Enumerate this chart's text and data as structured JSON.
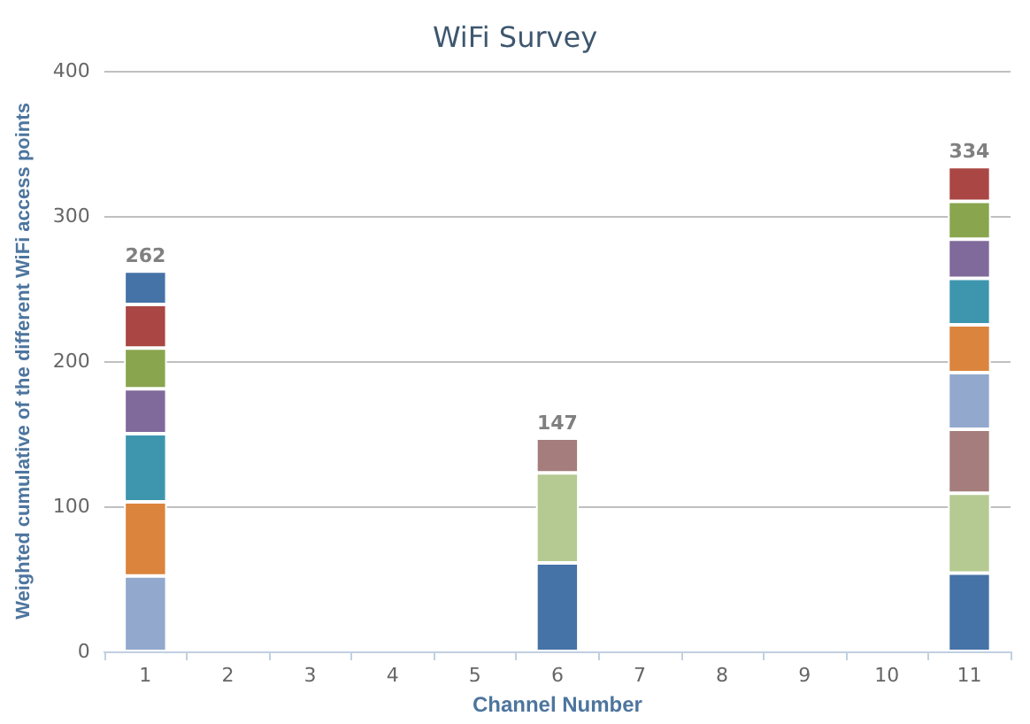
{
  "chart_data": {
    "type": "bar",
    "title": "WiFi Survey",
    "xlabel": "Channel Number",
    "ylabel": "Weighted cumulative of the different WiFi access points",
    "categories": [
      "1",
      "2",
      "3",
      "4",
      "5",
      "6",
      "7",
      "8",
      "9",
      "10",
      "11"
    ],
    "stacked": true,
    "ylim": [
      0,
      400
    ],
    "yticks": [
      0,
      100,
      200,
      300,
      400
    ],
    "grid": "y",
    "totals": [
      "262",
      null,
      null,
      null,
      null,
      "147",
      null,
      null,
      null,
      null,
      "334"
    ],
    "series": [
      {
        "color": "#92a8cd",
        "values": [
          52,
          null,
          null,
          null,
          null,
          null,
          null,
          null,
          null,
          null,
          null
        ]
      },
      {
        "color": "#db843d",
        "values": [
          51,
          null,
          null,
          null,
          null,
          null,
          null,
          null,
          null,
          null,
          null
        ]
      },
      {
        "color": "#3d96ae",
        "values": [
          47,
          null,
          null,
          null,
          null,
          null,
          null,
          null,
          null,
          null,
          null
        ]
      },
      {
        "color": "#80699b",
        "values": [
          31,
          null,
          null,
          null,
          null,
          null,
          null,
          null,
          null,
          null,
          null
        ]
      },
      {
        "color": "#89a54e",
        "values": [
          28,
          null,
          null,
          null,
          null,
          null,
          null,
          null,
          null,
          null,
          null
        ]
      },
      {
        "color": "#aa4643",
        "values": [
          30,
          null,
          null,
          null,
          null,
          null,
          null,
          null,
          null,
          null,
          null
        ]
      },
      {
        "color": "#4572a7",
        "values": [
          23,
          null,
          null,
          null,
          null,
          null,
          null,
          null,
          null,
          null,
          null
        ]
      },
      {
        "color": "#4572a7",
        "values": [
          null,
          null,
          null,
          null,
          null,
          61,
          null,
          null,
          null,
          null,
          null
        ]
      },
      {
        "color": "#b5ca92",
        "values": [
          null,
          null,
          null,
          null,
          null,
          62,
          null,
          null,
          null,
          null,
          null
        ]
      },
      {
        "color": "#a47d7c",
        "values": [
          null,
          null,
          null,
          null,
          null,
          24,
          null,
          null,
          null,
          null,
          null
        ]
      },
      {
        "color": "#4572a7",
        "values": [
          null,
          null,
          null,
          null,
          null,
          null,
          null,
          null,
          null,
          null,
          54
        ]
      },
      {
        "color": "#b5ca92",
        "values": [
          null,
          null,
          null,
          null,
          null,
          null,
          null,
          null,
          null,
          null,
          55
        ]
      },
      {
        "color": "#a47d7c",
        "values": [
          null,
          null,
          null,
          null,
          null,
          null,
          null,
          null,
          null,
          null,
          44
        ]
      },
      {
        "color": "#92a8cd",
        "values": [
          null,
          null,
          null,
          null,
          null,
          null,
          null,
          null,
          null,
          null,
          39
        ]
      },
      {
        "color": "#db843d",
        "values": [
          null,
          null,
          null,
          null,
          null,
          null,
          null,
          null,
          null,
          null,
          33
        ]
      },
      {
        "color": "#3d96ae",
        "values": [
          null,
          null,
          null,
          null,
          null,
          null,
          null,
          null,
          null,
          null,
          32
        ]
      },
      {
        "color": "#80699b",
        "values": [
          null,
          null,
          null,
          null,
          null,
          null,
          null,
          null,
          null,
          null,
          27
        ]
      },
      {
        "color": "#89a54e",
        "values": [
          null,
          null,
          null,
          null,
          null,
          null,
          null,
          null,
          null,
          null,
          26
        ]
      },
      {
        "color": "#aa4643",
        "values": [
          null,
          null,
          null,
          null,
          null,
          null,
          null,
          null,
          null,
          null,
          24
        ]
      }
    ]
  }
}
